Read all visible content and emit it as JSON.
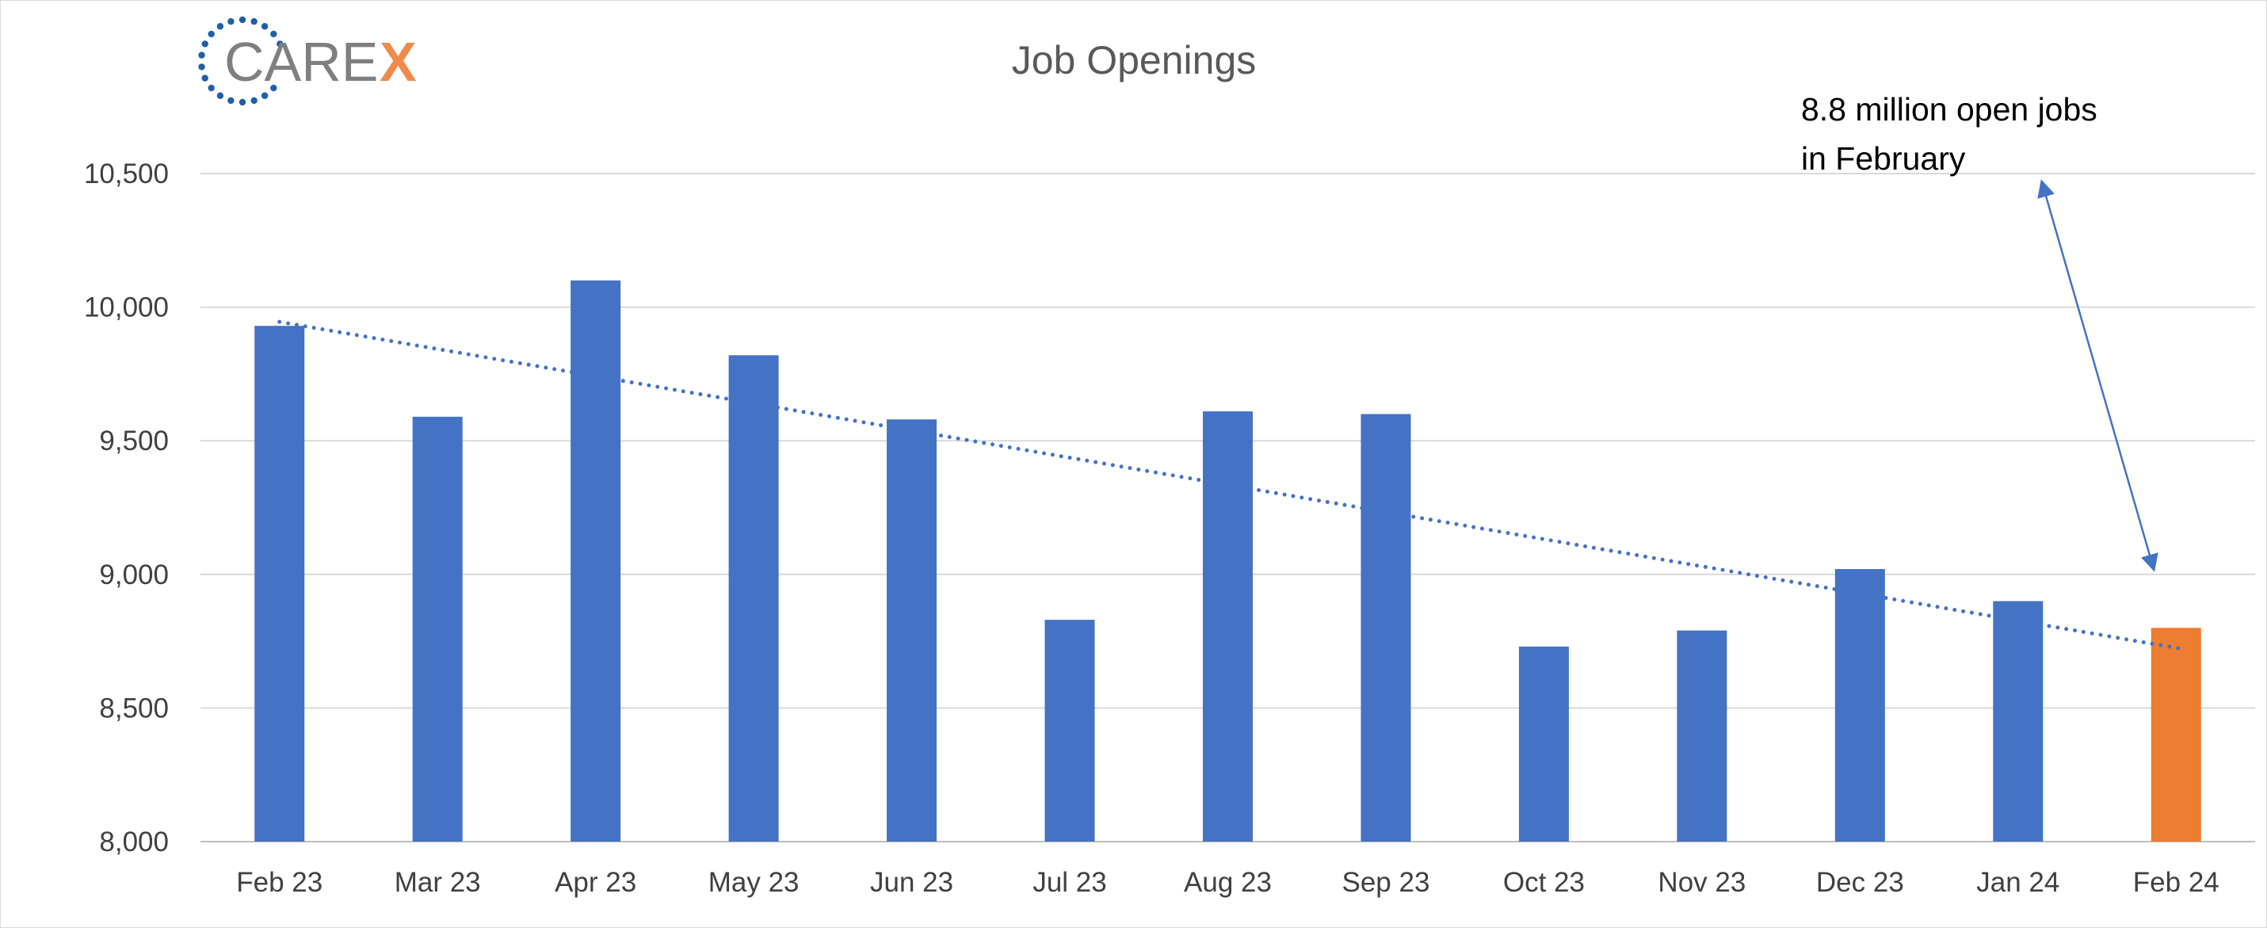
{
  "logo": {
    "text": "CARE",
    "accent_text": "X",
    "ring_color": "#1f5fa8",
    "accent_color": "#f08a4b",
    "text_color": "#7f7f7f"
  },
  "chart_data": {
    "type": "bar",
    "title": "Job Openings",
    "xlabel": "",
    "ylabel": "",
    "ylim": [
      8000,
      10500
    ],
    "yticks": [
      8000,
      8500,
      9000,
      9500,
      10000,
      10500
    ],
    "ytick_labels": [
      "8,000",
      "8,500",
      "9,000",
      "9,500",
      "10,000",
      "10,500"
    ],
    "categories": [
      "Feb 23",
      "Mar 23",
      "Apr 23",
      "May 23",
      "Jun 23",
      "Jul 23",
      "Aug 23",
      "Sep 23",
      "Oct 23",
      "Nov 23",
      "Dec 23",
      "Jan 24",
      "Feb 24"
    ],
    "values": [
      9930,
      9590,
      10100,
      9820,
      9580,
      8830,
      9610,
      9600,
      8730,
      8790,
      9020,
      8900,
      8800
    ],
    "bar_colors": [
      "#4472c4",
      "#4472c4",
      "#4472c4",
      "#4472c4",
      "#4472c4",
      "#4472c4",
      "#4472c4",
      "#4472c4",
      "#4472c4",
      "#4472c4",
      "#4472c4",
      "#4472c4",
      "#ed7d31"
    ],
    "trendline": {
      "style": "dotted",
      "color": "#4472c4",
      "start": 9945,
      "end": 8720
    },
    "grid": true,
    "annotation": {
      "lines": [
        "8.8 million open jobs",
        "in February"
      ],
      "arrow_color": "#4472c4"
    }
  }
}
